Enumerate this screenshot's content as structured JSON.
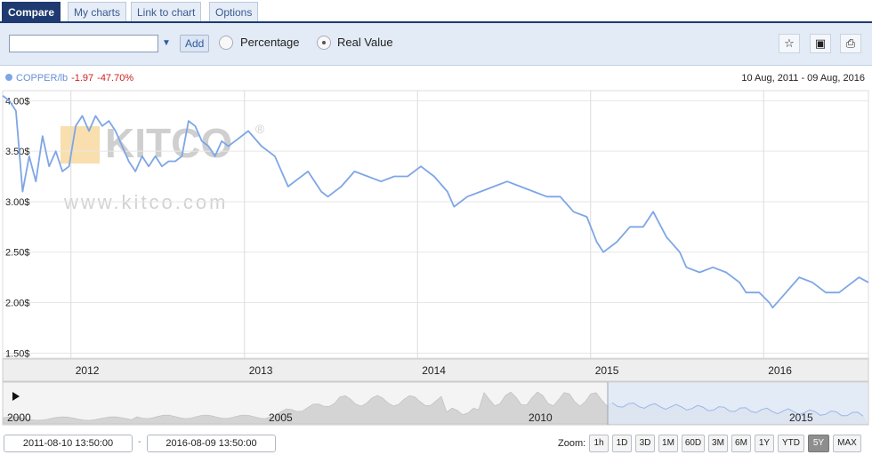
{
  "tabs": [
    {
      "label": "Compare",
      "active": true
    },
    {
      "label": "My charts",
      "active": false
    },
    {
      "label": "Link to chart",
      "active": false
    },
    {
      "label": "Options",
      "active": false
    }
  ],
  "toolbar": {
    "combo_value": "",
    "add_label": "Add",
    "radio_percentage": "Percentage",
    "radio_real_value": "Real Value",
    "selected_mode": "Real Value",
    "icons": [
      "star-icon",
      "save-icon",
      "print-icon"
    ]
  },
  "legend": {
    "symbol": "COPPER/lb",
    "change": "-1.97",
    "change_pct": "-47.70%",
    "range": "10 Aug, 2011 - 09 Aug, 2016"
  },
  "watermark": {
    "brand": "KITCO",
    "reg": "®",
    "url": "www.kitco.com"
  },
  "colors": {
    "line": "#7ea6e6",
    "negative": "#d11e1e",
    "header": "#1e3a70"
  },
  "chart_data": {
    "type": "line",
    "title": "",
    "xlabel": "",
    "ylabel": "",
    "series": [
      {
        "name": "COPPER/lb",
        "x": [
          "2011-08-10",
          "2011-08-24",
          "2011-09-07",
          "2011-09-21",
          "2011-10-05",
          "2011-10-19",
          "2011-11-02",
          "2011-11-16",
          "2011-11-30",
          "2011-12-14",
          "2011-12-28",
          "2012-01-11",
          "2012-01-25",
          "2012-02-08",
          "2012-02-22",
          "2012-03-07",
          "2012-03-21",
          "2012-04-04",
          "2012-04-18",
          "2012-05-02",
          "2012-05-16",
          "2012-05-30",
          "2012-06-13",
          "2012-06-27",
          "2012-07-11",
          "2012-07-25",
          "2012-08-08",
          "2012-08-22",
          "2012-09-05",
          "2012-09-19",
          "2012-10-03",
          "2012-10-17",
          "2012-10-31",
          "2012-11-14",
          "2012-11-28",
          "2012-12-12",
          "2012-12-26",
          "2013-01-09",
          "2013-02-06",
          "2013-03-06",
          "2013-04-03",
          "2013-04-17",
          "2013-05-15",
          "2013-06-12",
          "2013-06-26",
          "2013-07-24",
          "2013-08-21",
          "2013-09-18",
          "2013-10-16",
          "2013-11-13",
          "2013-12-11",
          "2014-01-08",
          "2014-02-05",
          "2014-03-05",
          "2014-03-19",
          "2014-04-16",
          "2014-05-14",
          "2014-06-11",
          "2014-07-09",
          "2014-08-06",
          "2014-09-03",
          "2014-10-01",
          "2014-10-29",
          "2014-11-26",
          "2014-12-24",
          "2015-01-14",
          "2015-01-28",
          "2015-02-25",
          "2015-03-25",
          "2015-04-22",
          "2015-05-13",
          "2015-06-10",
          "2015-07-08",
          "2015-07-22",
          "2015-08-19",
          "2015-09-16",
          "2015-10-14",
          "2015-11-11",
          "2015-11-25",
          "2015-12-23",
          "2016-01-13",
          "2016-01-20",
          "2016-02-17",
          "2016-03-16",
          "2016-04-13",
          "2016-05-11",
          "2016-06-08",
          "2016-07-06",
          "2016-07-20",
          "2016-08-09"
        ],
        "values": [
          4.05,
          4.0,
          3.9,
          3.1,
          3.45,
          3.2,
          3.65,
          3.35,
          3.5,
          3.3,
          3.35,
          3.75,
          3.85,
          3.7,
          3.85,
          3.75,
          3.8,
          3.7,
          3.55,
          3.4,
          3.3,
          3.45,
          3.35,
          3.45,
          3.35,
          3.4,
          3.4,
          3.45,
          3.8,
          3.75,
          3.6,
          3.55,
          3.45,
          3.6,
          3.55,
          3.6,
          3.65,
          3.7,
          3.55,
          3.45,
          3.15,
          3.2,
          3.3,
          3.1,
          3.05,
          3.15,
          3.3,
          3.25,
          3.2,
          3.25,
          3.25,
          3.35,
          3.25,
          3.1,
          2.95,
          3.05,
          3.1,
          3.15,
          3.2,
          3.15,
          3.1,
          3.05,
          3.05,
          2.9,
          2.85,
          2.6,
          2.5,
          2.6,
          2.75,
          2.75,
          2.9,
          2.65,
          2.5,
          2.35,
          2.3,
          2.35,
          2.3,
          2.2,
          2.1,
          2.1,
          2.0,
          1.95,
          2.1,
          2.25,
          2.2,
          2.1,
          2.1,
          2.2,
          2.25,
          2.2
        ]
      }
    ],
    "x_ticks": [
      "2012",
      "2013",
      "2014",
      "2015",
      "2016"
    ],
    "y_ticks": [
      "1.50$",
      "2.00$",
      "2.50$",
      "3.00$",
      "3.50$",
      "4.00$"
    ],
    "xlim": [
      "2011-08-10",
      "2016-08-09"
    ],
    "ylim": [
      1.45,
      4.1
    ],
    "grid": true,
    "navigator": {
      "labels": [
        "2000",
        "2005",
        "2010",
        "2015"
      ],
      "selected_range": [
        "2011-08-10",
        "2016-08-09"
      ]
    }
  },
  "bottom": {
    "from_date": "2011-08-10 13:50:00",
    "to_date": "2016-08-09 13:50:00",
    "separator": "-",
    "zoom_label": "Zoom:",
    "zoom_options": [
      "1h",
      "1D",
      "3D",
      "1M",
      "60D",
      "3M",
      "6M",
      "1Y",
      "YTD",
      "5Y",
      "MAX"
    ],
    "zoom_selected": "5Y"
  }
}
